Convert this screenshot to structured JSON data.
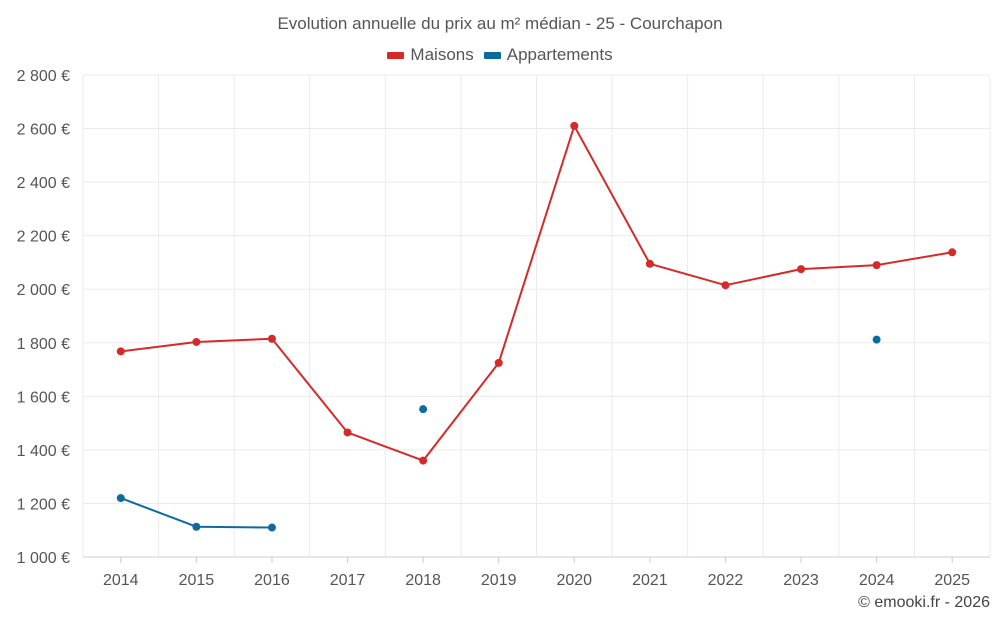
{
  "chart_data": {
    "type": "line",
    "title": "Evolution annuelle du prix au m² médian - 25 - Courchapon",
    "xlabel": "",
    "ylabel": "",
    "x": [
      2014,
      2015,
      2016,
      2017,
      2018,
      2019,
      2020,
      2021,
      2022,
      2023,
      2024,
      2025
    ],
    "ylim": [
      1000,
      2800
    ],
    "yticks": [
      1000,
      1200,
      1400,
      1600,
      1800,
      2000,
      2200,
      2400,
      2600,
      2800
    ],
    "ytick_labels": [
      "1 000 €",
      "1 200 €",
      "1 400 €",
      "1 600 €",
      "1 800 €",
      "2 000 €",
      "2 200 €",
      "2 400 €",
      "2 600 €",
      "2 800 €"
    ],
    "grid": true,
    "legend_position": "top-center",
    "series": [
      {
        "name": "Maisons",
        "color": "#d62a28",
        "values": [
          1768,
          1803,
          1815,
          1465,
          1360,
          1725,
          2610,
          2095,
          2015,
          2075,
          2090,
          2138
        ]
      },
      {
        "name": "Appartements",
        "color": "#0d6a9c",
        "values": [
          1220,
          1113,
          1110,
          null,
          1552,
          null,
          null,
          null,
          null,
          null,
          1812,
          null
        ]
      }
    ]
  },
  "footer": {
    "credit": "© emooki.fr - 2026"
  }
}
